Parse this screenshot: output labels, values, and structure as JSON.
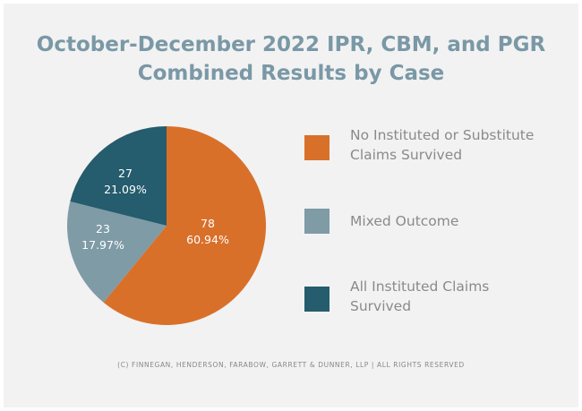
{
  "chart_data": {
    "type": "pie",
    "title_lines": [
      "October-December 2022 IPR, CBM, and PGR",
      "Combined Results by Case"
    ],
    "slices": [
      {
        "legend_lines": [
          "No Instituted or Substitute",
          "Claims Survived"
        ],
        "count": "78",
        "percent": "60.94%",
        "value": 78,
        "color": "#d9702a"
      },
      {
        "legend_lines": [
          "Mixed Outcome"
        ],
        "count": "23",
        "percent": "17.97%",
        "value": 23,
        "color": "#7f9ba6"
      },
      {
        "legend_lines": [
          "All Instituted Claims",
          "Survived"
        ],
        "count": "27",
        "percent": "21.09%",
        "value": 27,
        "color": "#255c6e"
      }
    ],
    "legend_position": "right"
  },
  "footer": "(C) FINNEGAN, HENDERSON, FARABOW, GARRETT & DUNNER, LLP | ALL RIGHTS RESERVED"
}
